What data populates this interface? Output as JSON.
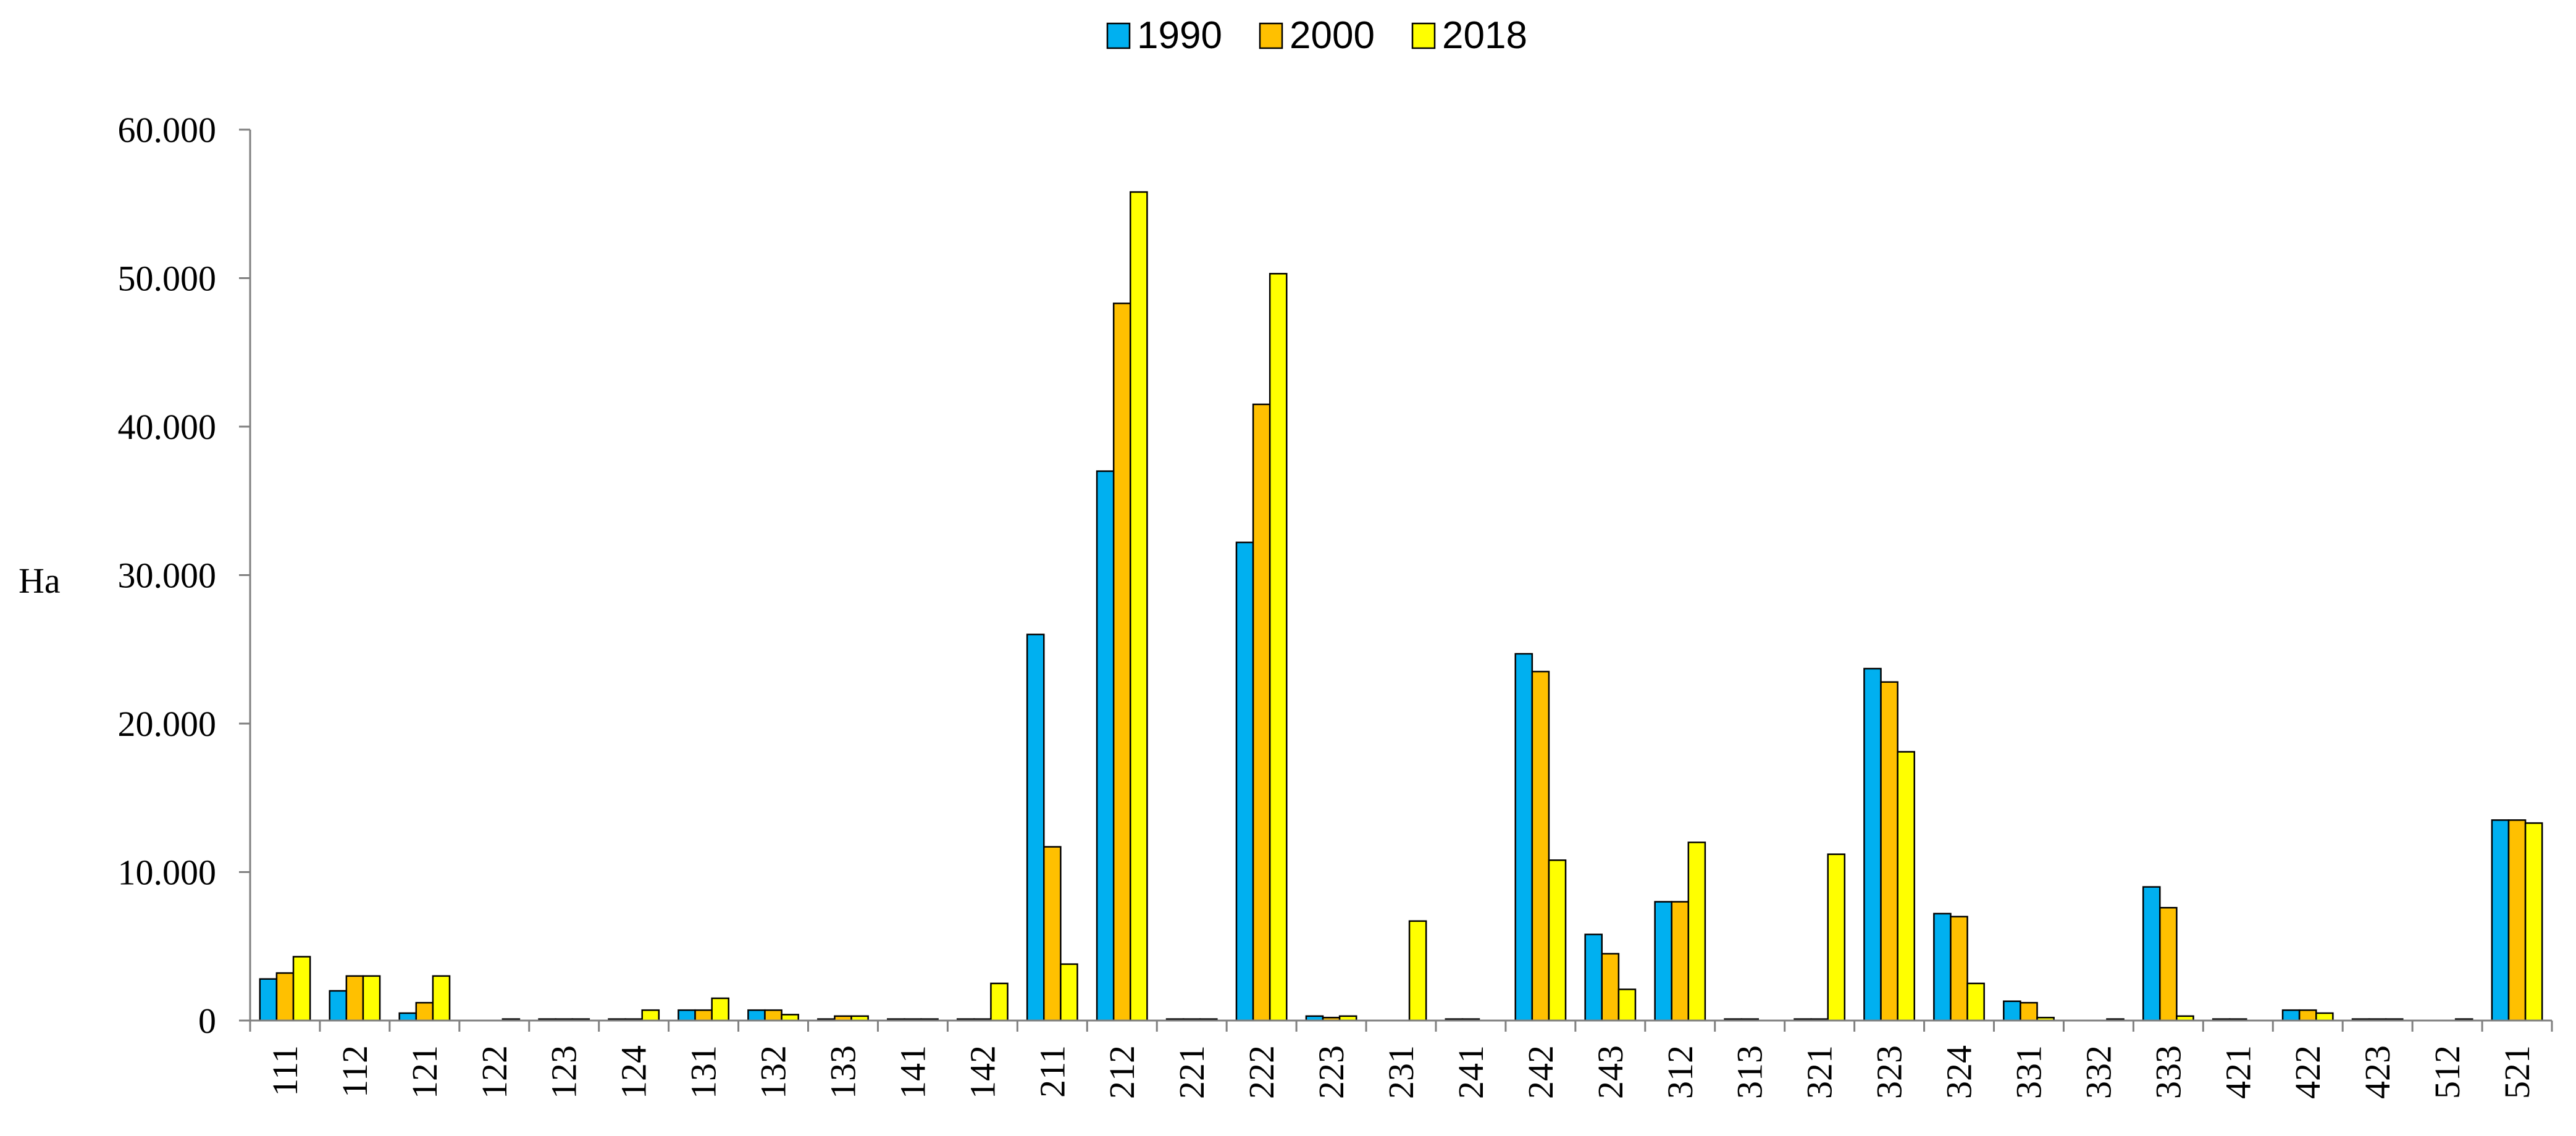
{
  "chart_data": {
    "type": "bar",
    "title": "",
    "xlabel": "",
    "ylabel": "Ha",
    "ylim": [
      0,
      60000
    ],
    "y_ticks": [
      0,
      10000,
      20000,
      30000,
      40000,
      50000,
      60000
    ],
    "y_tick_labels": [
      "0",
      "10.000",
      "20.000",
      "30.000",
      "40.000",
      "50.000",
      "60.000"
    ],
    "grid": false,
    "legend_position": "top-center",
    "categories": [
      "111",
      "112",
      "121",
      "122",
      "123",
      "124",
      "131",
      "132",
      "133",
      "141",
      "142",
      "211",
      "212",
      "221",
      "222",
      "223",
      "231",
      "241",
      "242",
      "243",
      "312",
      "313",
      "321",
      "323",
      "324",
      "331",
      "332",
      "333",
      "421",
      "422",
      "423",
      "512",
      "521"
    ],
    "series": [
      {
        "name": "1990",
        "color": "#00B0F0",
        "values": [
          2800,
          2000,
          500,
          0,
          100,
          100,
          700,
          700,
          100,
          100,
          100,
          26000,
          37000,
          100,
          32200,
          300,
          0,
          100,
          24700,
          5800,
          8000,
          100,
          100,
          23700,
          7200,
          1300,
          0,
          9000,
          100,
          700,
          100,
          0,
          13500
        ]
      },
      {
        "name": "2000",
        "color": "#FFC000",
        "values": [
          3200,
          3000,
          1200,
          0,
          100,
          100,
          700,
          700,
          300,
          100,
          100,
          11700,
          48300,
          100,
          41500,
          200,
          0,
          100,
          23500,
          4500,
          8000,
          100,
          100,
          22800,
          7000,
          1200,
          0,
          7600,
          100,
          700,
          100,
          0,
          13500
        ]
      },
      {
        "name": "2018",
        "color": "#FFFF00",
        "values": [
          4300,
          3000,
          3000,
          100,
          100,
          700,
          1500,
          400,
          300,
          100,
          2500,
          3800,
          55800,
          100,
          50300,
          300,
          6700,
          0,
          10800,
          2100,
          12000,
          0,
          11200,
          18100,
          2500,
          200,
          100,
          300,
          0,
          500,
          100,
          100,
          13300
        ]
      }
    ]
  }
}
